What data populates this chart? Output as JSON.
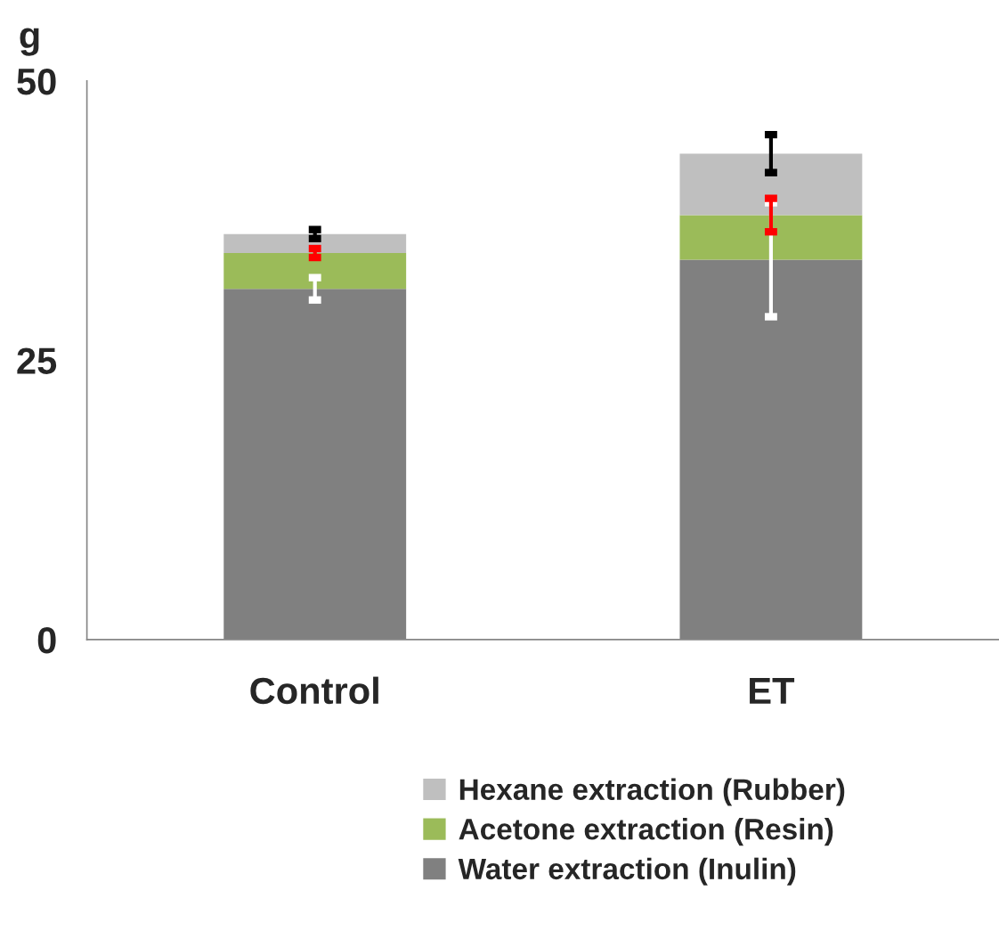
{
  "chart_data": {
    "type": "bar",
    "stacked": true,
    "ylabel": "g",
    "categories": [
      "Control",
      "ET"
    ],
    "series": [
      {
        "name": "Water extraction (Inulin)",
        "color": "#808080",
        "values": [
          31.4,
          34.0
        ],
        "errors": [
          1.0,
          5.1
        ]
      },
      {
        "name": "Acetone extraction (Resin)",
        "color": "#9bbb59",
        "values": [
          3.2,
          4.0
        ],
        "errors": [
          0.4,
          1.5
        ]
      },
      {
        "name": "Hexane extraction (Rubber)",
        "color": "#bfbfbf",
        "values": [
          1.7,
          5.5
        ],
        "errors": [
          0.4,
          1.7
        ]
      }
    ],
    "ylim": [
      0,
      50
    ],
    "yticks": [
      0,
      25,
      50
    ],
    "grid": false,
    "legend": "bottom"
  }
}
